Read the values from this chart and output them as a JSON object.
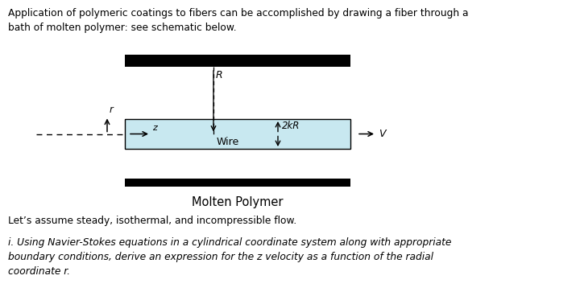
{
  "bg_color": "#ffffff",
  "text_color": "#000000",
  "paragraph1": "Application of polymeric coatings to fibers can be accomplished by drawing a fiber through a\nbath of molten polymer: see schematic below.",
  "paragraph2": "Let’s assume steady, isothermal, and incompressible flow.",
  "paragraph3": "i. Using Navier-Stokes equations in a cylindrical coordinate system along with appropriate\nboundary conditions, derive an expression for the z velocity as a function of the radial\ncoordinate r.",
  "wire_label": "Wire",
  "polymer_label": "Molten Polymer",
  "R_label": "R",
  "twokR_label": "2kR",
  "V_label": "V",
  "r_label": "r",
  "z_label": "z",
  "box_color": "#c8e8f0",
  "bar_color": "#000000"
}
